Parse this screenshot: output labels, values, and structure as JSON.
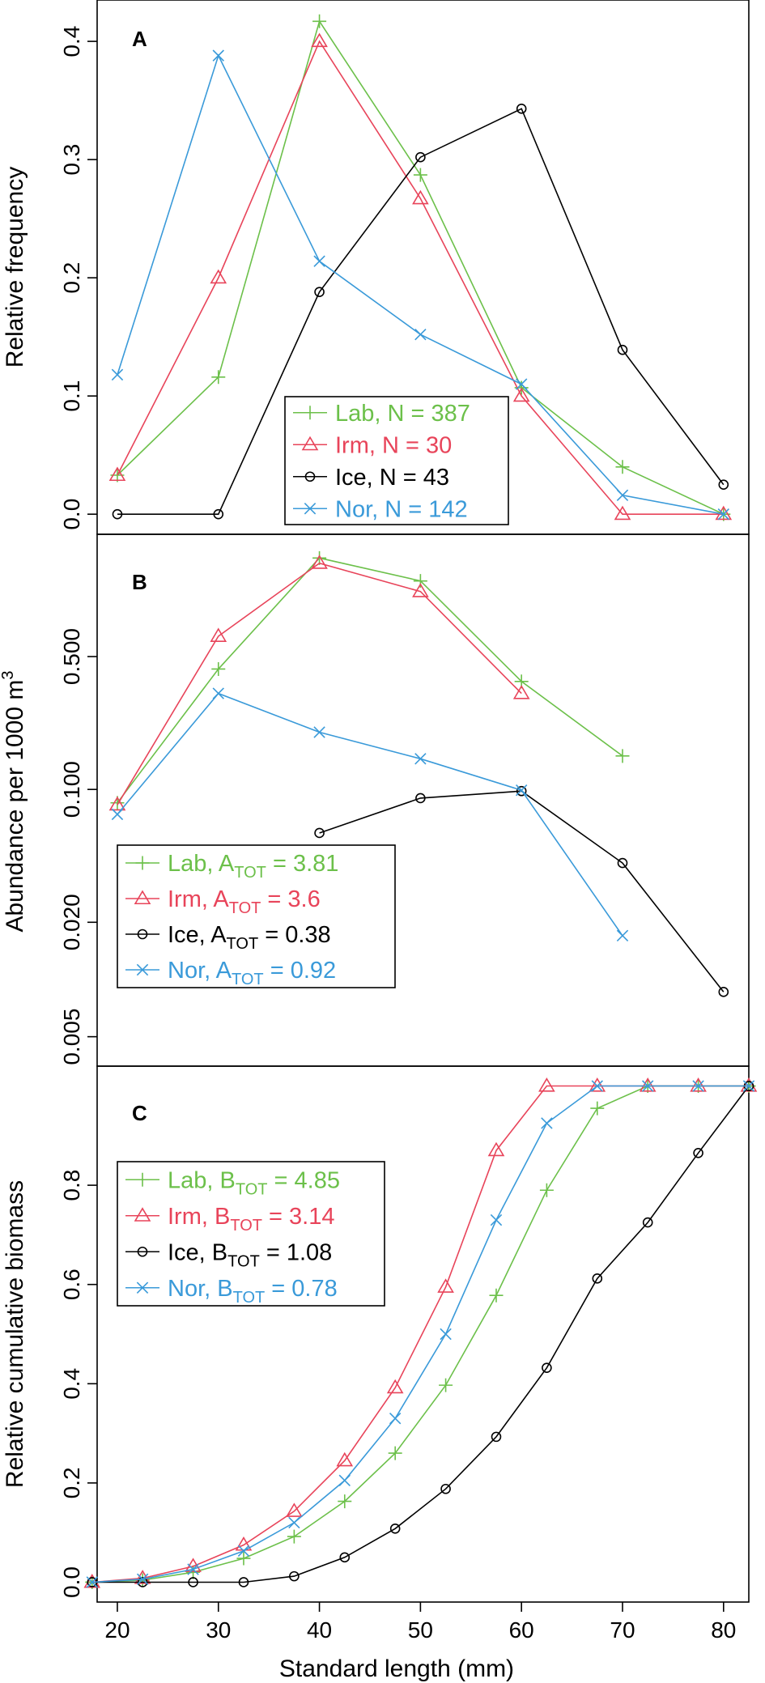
{
  "colors": {
    "Lab": "#6cc04a",
    "Irm": "#e8445a",
    "Ice": "#000000",
    "Nor": "#3a9ad9"
  },
  "chart_data": [
    {
      "type": "line",
      "panel_label": "A",
      "ylabel": "Relative frequency",
      "xlabel": "",
      "xlim": [
        18,
        82.5
      ],
      "ylim": [
        -0.017,
        0.435
      ],
      "yticks": [
        0.0,
        0.1,
        0.2,
        0.3,
        0.4
      ],
      "ytick_labels": [
        "0.0",
        "0.1",
        "0.2",
        "0.3",
        "0.4"
      ],
      "series": [
        {
          "name": "Lab",
          "marker": "plus",
          "legend_prefix": "Lab, N = ",
          "legend_value": "387",
          "x": [
            20,
            30,
            40,
            50,
            60,
            70,
            80
          ],
          "values": [
            0.033,
            0.116,
            0.417,
            0.287,
            0.107,
            0.04,
            0.0
          ]
        },
        {
          "name": "Irm",
          "marker": "triangle",
          "legend_prefix": "Irm, N = ",
          "legend_value": "30",
          "x": [
            20,
            30,
            40,
            50,
            60,
            70,
            80
          ],
          "values": [
            0.033,
            0.2,
            0.4,
            0.267,
            0.1,
            0.0,
            0.0
          ]
        },
        {
          "name": "Ice",
          "marker": "circle",
          "legend_prefix": "Ice, N = ",
          "legend_value": "43",
          "x": [
            20,
            30,
            40,
            50,
            60,
            70,
            80
          ],
          "values": [
            0.0,
            0.0,
            0.188,
            0.302,
            0.343,
            0.139,
            0.025
          ]
        },
        {
          "name": "Nor",
          "marker": "cross",
          "legend_prefix": "Nor, N = ",
          "legend_value": "142",
          "x": [
            20,
            30,
            40,
            50,
            60,
            70,
            80
          ],
          "values": [
            0.118,
            0.388,
            0.214,
            0.152,
            0.11,
            0.016,
            0.0
          ]
        }
      ]
    },
    {
      "type": "line",
      "panel_label": "B",
      "ylabel_main": "Abundance per 1000 m",
      "ylabel_sup": "3",
      "xlabel": "",
      "yscale": "log",
      "xlim": [
        18,
        82.5
      ],
      "ylim": [
        0.0035,
        2.2
      ],
      "yticks": [
        0.005,
        0.02,
        0.1,
        0.5
      ],
      "ytick_labels": [
        "0.005",
        "0.020",
        "0.100",
        "0.500"
      ],
      "series": [
        {
          "name": "Lab",
          "marker": "plus",
          "legend_prefix": "Lab, A",
          "legend_sub": "TOT",
          "legend_value": " = 3.81",
          "x": [
            20,
            30,
            40,
            50,
            60,
            70
          ],
          "values": [
            0.085,
            0.43,
            1.65,
            1.25,
            0.37,
            0.15
          ]
        },
        {
          "name": "Irm",
          "marker": "triangle",
          "legend_prefix": "Irm, A",
          "legend_sub": "TOT",
          "legend_value": " = 3.6",
          "x": [
            20,
            30,
            40,
            50,
            60
          ],
          "values": [
            0.083,
            0.64,
            1.55,
            1.1,
            0.32
          ]
        },
        {
          "name": "Ice",
          "marker": "circle",
          "legend_prefix": "Ice, A",
          "legend_sub": "TOT",
          "legend_value": " = 0.38",
          "x": [
            40,
            50,
            60,
            70,
            80
          ],
          "values": [
            0.059,
            0.09,
            0.098,
            0.041,
            0.0086
          ]
        },
        {
          "name": "Nor",
          "marker": "cross",
          "legend_prefix": "Nor, A",
          "legend_sub": "TOT",
          "legend_value": " = 0.92",
          "x": [
            20,
            30,
            40,
            50,
            60,
            70
          ],
          "values": [
            0.074,
            0.32,
            0.2,
            0.145,
            0.099,
            0.017
          ]
        }
      ]
    },
    {
      "type": "line",
      "panel_label": "C",
      "ylabel": "Relative cumulative biomass",
      "xlabel": "Standard length (mm)",
      "xlim": [
        18,
        82.5
      ],
      "ylim": [
        -0.04,
        1.04
      ],
      "yticks": [
        0.0,
        0.2,
        0.4,
        0.6,
        0.8
      ],
      "ytick_labels": [
        "0.0",
        "0.2",
        "0.4",
        "0.6",
        "0.8"
      ],
      "xticks": [
        20,
        30,
        40,
        50,
        60,
        70,
        80
      ],
      "xtick_labels": [
        "20",
        "30",
        "40",
        "50",
        "60",
        "70",
        "80"
      ],
      "series": [
        {
          "name": "Lab",
          "marker": "plus",
          "legend_prefix": "Lab, B",
          "legend_sub": "TOT",
          "legend_value": " = 4.85",
          "x": [
            17.5,
            22.5,
            27.5,
            32.5,
            37.5,
            42.5,
            47.5,
            52.5,
            57.5,
            62.5,
            67.5,
            72.5,
            77.5,
            82.5
          ],
          "values": [
            0.0,
            0.004,
            0.02,
            0.048,
            0.092,
            0.163,
            0.26,
            0.397,
            0.578,
            0.79,
            0.955,
            1.0,
            1.0,
            1.0
          ]
        },
        {
          "name": "Irm",
          "marker": "triangle",
          "legend_prefix": "Irm, B",
          "legend_sub": "TOT",
          "legend_value": " = 3.14",
          "x": [
            17.5,
            22.5,
            27.5,
            32.5,
            37.5,
            42.5,
            47.5,
            52.5,
            57.5,
            62.5,
            67.5,
            72.5,
            77.5,
            82.5
          ],
          "values": [
            0.0,
            0.008,
            0.032,
            0.075,
            0.143,
            0.245,
            0.392,
            0.595,
            0.87,
            1.0,
            1.0,
            1.0,
            1.0,
            1.0
          ]
        },
        {
          "name": "Ice",
          "marker": "circle",
          "legend_prefix": "Ice, B",
          "legend_sub": "TOT",
          "legend_value": " = 1.08",
          "x": [
            17.5,
            22.5,
            27.5,
            32.5,
            37.5,
            42.5,
            47.5,
            52.5,
            57.5,
            62.5,
            67.5,
            72.5,
            77.5,
            82.5
          ],
          "values": [
            0.0,
            0.0,
            0.0,
            0.0,
            0.012,
            0.05,
            0.108,
            0.188,
            0.293,
            0.432,
            0.612,
            0.725,
            0.865,
            1.0
          ]
        },
        {
          "name": "Nor",
          "marker": "cross",
          "legend_prefix": "Nor, B",
          "legend_sub": "TOT",
          "legend_value": " = 0.78",
          "x": [
            17.5,
            22.5,
            27.5,
            32.5,
            37.5,
            42.5,
            47.5,
            52.5,
            57.5,
            62.5,
            67.5,
            72.5,
            77.5,
            82.5
          ],
          "values": [
            0.0,
            0.006,
            0.026,
            0.063,
            0.12,
            0.205,
            0.33,
            0.5,
            0.73,
            0.925,
            1.0,
            1.0,
            1.0,
            1.0
          ]
        }
      ]
    }
  ]
}
